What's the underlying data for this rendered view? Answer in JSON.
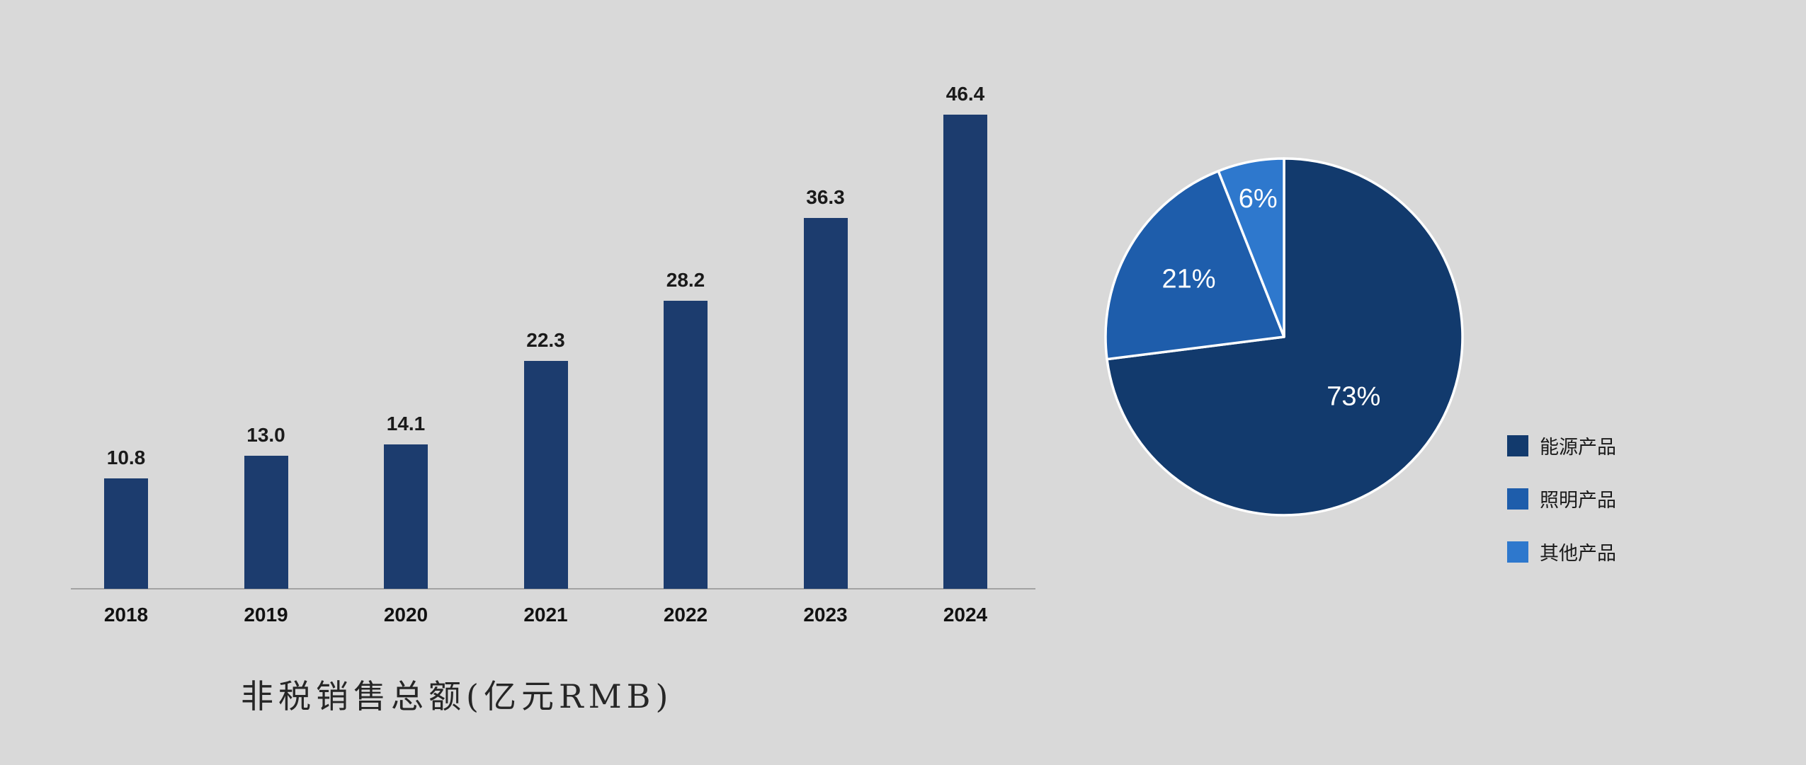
{
  "page": {
    "background_color": "#d9d9d9"
  },
  "chart_data": [
    {
      "type": "bar",
      "title": "非税销售总额(亿元RMB)",
      "categories": [
        "2018",
        "2019",
        "2020",
        "2021",
        "2022",
        "2023",
        "2024"
      ],
      "values": [
        10.8,
        13.0,
        14.1,
        22.3,
        28.2,
        36.3,
        46.4
      ],
      "value_labels": [
        "10.8",
        "13.0",
        "14.1",
        "22.3",
        "28.2",
        "36.3",
        "46.4"
      ],
      "bar_color": "#1c3c6e",
      "axis_line_color": "#a3a3a3",
      "ylim": [
        0,
        48
      ],
      "grid": false,
      "legend_position": "none"
    },
    {
      "type": "pie",
      "start_angle_deg": 0,
      "direction": "clockwise",
      "slice_border_color": "#ffffff",
      "slices": [
        {
          "label": "能源产品",
          "value": 73,
          "display": "73%",
          "color": "#123a6d"
        },
        {
          "label": "照明产品",
          "value": 21,
          "display": "21%",
          "color": "#1e5dab"
        },
        {
          "label": "其他产品",
          "value": 6,
          "display": "6%",
          "color": "#2e78cd"
        }
      ],
      "legend_position": "right"
    }
  ]
}
